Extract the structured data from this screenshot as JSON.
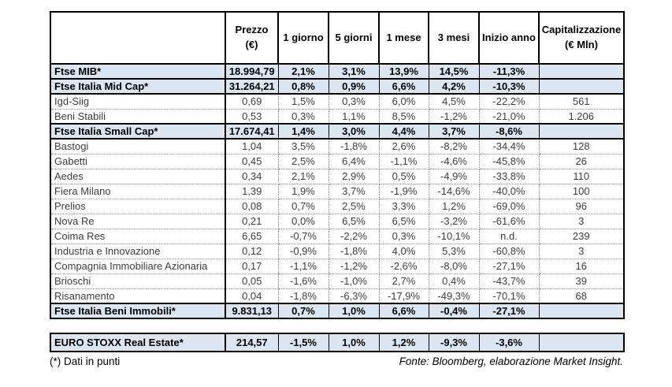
{
  "table": {
    "columns": [
      "",
      "Prezzo\n(€)",
      "1 giorno",
      "5 giorni",
      "1 mese",
      "3 mesi",
      "Inizio anno",
      "Capitalizzazione\n(€ Mln)"
    ],
    "rows": [
      {
        "name": "Ftse MIB*",
        "type": "index",
        "values": [
          "18.994,79",
          "2,1%",
          "3,1%",
          "13,9%",
          "14,5%",
          "-11,3%",
          ""
        ]
      },
      {
        "name": "Ftse Italia Mid Cap*",
        "type": "index",
        "values": [
          "31.264,21",
          "0,8%",
          "0,9%",
          "6,6%",
          "4,2%",
          "-10,3%",
          ""
        ]
      },
      {
        "name": "Igd-Siig",
        "type": "stock",
        "values": [
          "0,69",
          "1,5%",
          "0,3%",
          "6,0%",
          "4,5%",
          "-22,2%",
          "561"
        ]
      },
      {
        "name": "Beni Stabili",
        "type": "stock",
        "values": [
          "0,53",
          "0,3%",
          "1,1%",
          "8,5%",
          "-1,2%",
          "-21,0%",
          "1.206"
        ]
      },
      {
        "name": "Ftse Italia Small Cap*",
        "type": "index",
        "values": [
          "17.674,41",
          "1,4%",
          "3,0%",
          "4,4%",
          "3,7%",
          "-8,6%",
          ""
        ]
      },
      {
        "name": "Bastogi",
        "type": "stock",
        "values": [
          "1,04",
          "3,5%",
          "-1,8%",
          "2,6%",
          "-8,2%",
          "-34,4%",
          "128"
        ]
      },
      {
        "name": "Gabetti",
        "type": "stock",
        "values": [
          "0,45",
          "2,5%",
          "6,4%",
          "-1,1%",
          "-4,6%",
          "-45,8%",
          "26"
        ]
      },
      {
        "name": "Aedes",
        "type": "stock",
        "values": [
          "0,34",
          "2,1%",
          "2,9%",
          "0,5%",
          "-4,9%",
          "-33,8%",
          "110"
        ]
      },
      {
        "name": "Fiera Milano",
        "type": "stock",
        "values": [
          "1,39",
          "1,9%",
          "3,7%",
          "-1,9%",
          "-14,6%",
          "-40,0%",
          "100"
        ]
      },
      {
        "name": "Prelios",
        "type": "stock",
        "values": [
          "0,08",
          "0,7%",
          "2,5%",
          "3,3%",
          "1,2%",
          "-69,0%",
          "96"
        ]
      },
      {
        "name": "Nova Re",
        "type": "stock",
        "values": [
          "0,21",
          "0,0%",
          "6,5%",
          "6,5%",
          "-3,2%",
          "-61,6%",
          "3"
        ]
      },
      {
        "name": "Coima Res",
        "type": "stock",
        "values": [
          "6,65",
          "-0,7%",
          "-2,2%",
          "0,3%",
          "-10,1%",
          "n.d.",
          "239"
        ]
      },
      {
        "name": "Industria e Innovazione",
        "type": "stock",
        "values": [
          "0,12",
          "-0,9%",
          "-1,8%",
          "4,0%",
          "5,3%",
          "-60,8%",
          "3"
        ]
      },
      {
        "name": "Compagnia Immobiliare Azionaria",
        "type": "stock",
        "values": [
          "0,17",
          "-1,1%",
          "-1,2%",
          "-2,6%",
          "-8,0%",
          "-27,1%",
          "16"
        ]
      },
      {
        "name": "Brioschi",
        "type": "stock",
        "values": [
          "0,05",
          "-1,6%",
          "-1,0%",
          "2,7%",
          "0,4%",
          "-43,7%",
          "39"
        ]
      },
      {
        "name": "Risanamento",
        "type": "stock",
        "values": [
          "0,04",
          "-1,8%",
          "-6,3%",
          "-17,9%",
          "-49,3%",
          "-70,1%",
          "68"
        ]
      },
      {
        "name": "Ftse Italia Beni Immobili*",
        "type": "index",
        "values": [
          "9.831,13",
          "0,7%",
          "1,0%",
          "6,6%",
          "-0,4%",
          "-27,1%",
          ""
        ]
      }
    ]
  },
  "euro_stoxx": {
    "name": "EURO STOXX Real Estate*",
    "type": "index",
    "values": [
      "214,57",
      "-1,5%",
      "1,0%",
      "1,2%",
      "-9,3%",
      "-3,6%",
      ""
    ]
  },
  "footer": {
    "left": "(*) Dati in punti",
    "right": "Fonte: Bloomberg, elaborazione Market Insight."
  },
  "colors": {
    "index_row_bg": "#dce6f1",
    "border": "#000000"
  }
}
